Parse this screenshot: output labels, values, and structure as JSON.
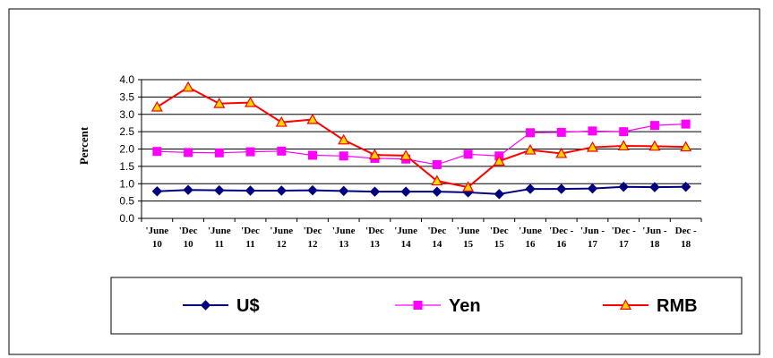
{
  "chart_data": {
    "type": "line",
    "title": "",
    "xlabel": "",
    "ylabel": "Percent",
    "ylim": [
      0,
      4
    ],
    "yticks": [
      "0.0",
      "0.5",
      "1.0",
      "1.5",
      "2.0",
      "2.5",
      "3.0",
      "3.5",
      "4.0"
    ],
    "grid": true,
    "legend_position": "bottom",
    "categories": [
      [
        "'June",
        "10"
      ],
      [
        "'Dec",
        "10"
      ],
      [
        "'June",
        "11"
      ],
      [
        "'Dec",
        "11"
      ],
      [
        "'June",
        "12"
      ],
      [
        "'Dec",
        "12"
      ],
      [
        "'June",
        "13"
      ],
      [
        "'Dec",
        "13"
      ],
      [
        "'June",
        "14"
      ],
      [
        "'Dec",
        "14"
      ],
      [
        "'June",
        "15"
      ],
      [
        "'Dec",
        "15"
      ],
      [
        "'June",
        "16"
      ],
      [
        "'Dec -",
        "16"
      ],
      [
        "'Jun -",
        "17"
      ],
      [
        "'Dec -",
        "17"
      ],
      [
        "'Jun -",
        "18"
      ],
      [
        "Dec -",
        "18"
      ]
    ],
    "series": [
      {
        "name": "U$",
        "color": "#000080",
        "marker": "diamond",
        "values": [
          0.78,
          0.82,
          0.81,
          0.8,
          0.8,
          0.81,
          0.79,
          0.77,
          0.77,
          0.77,
          0.75,
          0.7,
          0.85,
          0.85,
          0.86,
          0.91,
          0.9,
          0.91
        ]
      },
      {
        "name": "Yen",
        "color": "#FF00FF",
        "marker": "square",
        "values": [
          1.93,
          1.9,
          1.89,
          1.92,
          1.94,
          1.82,
          1.8,
          1.73,
          1.71,
          1.55,
          1.85,
          1.8,
          2.47,
          2.48,
          2.52,
          2.5,
          2.68,
          2.72
        ]
      },
      {
        "name": "RMB",
        "color": "#FF0000",
        "marker": "triangle",
        "marker_fill": "#FFD700",
        "values": [
          3.21,
          3.78,
          3.31,
          3.34,
          2.77,
          2.85,
          2.26,
          1.83,
          1.81,
          1.08,
          0.9,
          1.65,
          1.97,
          1.87,
          2.05,
          2.09,
          2.08,
          2.06
        ]
      }
    ]
  }
}
